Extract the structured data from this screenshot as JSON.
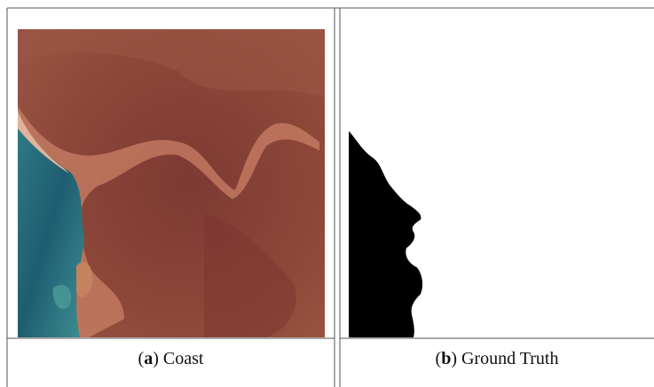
{
  "panels": [
    {
      "label": {
        "open": "(",
        "letter": "a",
        "close": ")"
      },
      "caption": "Coast"
    },
    {
      "label": {
        "open": "(",
        "letter": "b",
        "close": ")"
      },
      "caption": "Ground Truth"
    }
  ]
}
